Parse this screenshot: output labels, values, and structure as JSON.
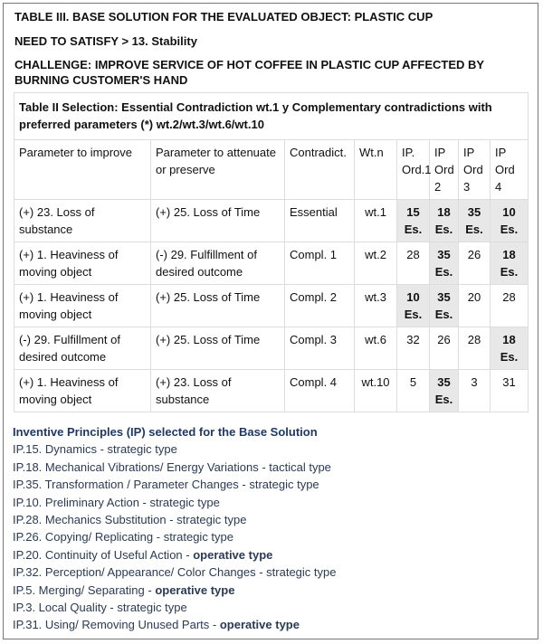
{
  "header": {
    "title": "TABLE III. BASE SOLUTION FOR THE EVALUATED OBJECT: PLASTIC CUP",
    "need": "NEED TO SATISFY > 13. Stability",
    "challenge": "CHALLENGE: IMPROVE SERVICE OF HOT COFFEE IN PLASTIC CUP AFFECTED BY BURNING CUSTOMER'S HAND"
  },
  "table": {
    "caption": "Table II Selection: Essential Contradiction wt.1 y Complementary contradictions with preferred parameters (*) wt.2/wt.3/wt.6/wt.10",
    "columns": [
      "Parameter to improve",
      "Parameter to attenuate or preserve",
      "Contradict.",
      "Wt.n",
      "IP. Ord.1",
      "IP Ord 2",
      "IP Ord 3",
      "IP Ord 4"
    ],
    "rows": [
      [
        "(+) 23. Loss of substance",
        "(+) 25. Loss of Time",
        "Essential",
        "wt.1",
        "15 Es.",
        "18 Es.",
        "35 Es.",
        "10 Es."
      ],
      [
        "(+) 1. Heaviness of moving object",
        "(-) 29. Fulfillment of desired outcome",
        "Compl. 1",
        "wt.2",
        "28",
        "35 Es.",
        "26",
        "18 Es."
      ],
      [
        "(+) 1. Heaviness of moving object",
        "(+) 25. Loss of Time",
        "Compl. 2",
        "wt.3",
        "10 Es.",
        "35 Es.",
        "20",
        "28"
      ],
      [
        "(-) 29. Fulfillment of desired outcome",
        "(+) 25. Loss of Time",
        "Compl. 3",
        "wt.6",
        "32",
        "26",
        "28",
        "18 Es."
      ],
      [
        "(+) 1. Heaviness of moving object",
        "(+) 23. Loss of substance",
        "Compl. 4",
        "wt.10",
        "5",
        "35 Es.",
        "3",
        "31"
      ]
    ]
  },
  "principles": {
    "title": "Inventive Principles (IP) selected for the Base Solution",
    "items": [
      {
        "text": "IP.15. Dynamics - strategic type"
      },
      {
        "text": "IP.18. Mechanical Vibrations/ Energy Variations - tactical type"
      },
      {
        "text": "IP.35. Transformation / Parameter Changes - strategic type"
      },
      {
        "text": "IP.10. Preliminary Action - strategic type"
      },
      {
        "text": "IP.28. Mechanics Substitution - strategic type"
      },
      {
        "text": "IP.26. Copying/ Replicating - strategic type"
      },
      {
        "text": "IP.20. Continuity of Useful Action -",
        "bold": "operative type"
      },
      {
        "text": "IP.32. Perception/ Appearance/ Color Changes - strategic type"
      },
      {
        "text": "IP.5. Merging/ Separating -",
        "bold": "operative type"
      },
      {
        "text": "IP.3. Local Quality - strategic type"
      },
      {
        "text": "IP.31. Using/ Removing Unused Parts -",
        "bold": "operative type"
      }
    ]
  }
}
